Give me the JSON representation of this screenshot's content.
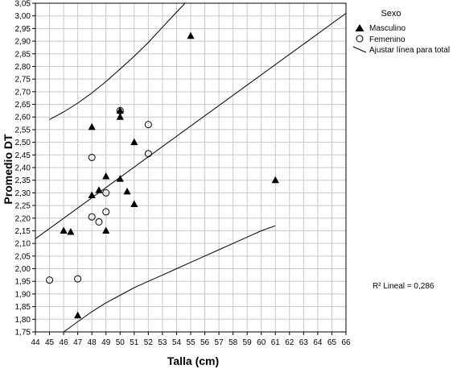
{
  "chart_data": {
    "type": "scatter",
    "title": "",
    "xlabel": "Talla (cm)",
    "ylabel": "Promedio DT",
    "xlim": [
      44,
      66
    ],
    "ylim": [
      1.75,
      3.05
    ],
    "x_ticks": [
      "44",
      "45",
      "46",
      "47",
      "48",
      "49",
      "50",
      "51",
      "52",
      "53",
      "54",
      "55",
      "56",
      "57",
      "58",
      "59",
      "60",
      "61",
      "62",
      "63",
      "64",
      "65",
      "66"
    ],
    "y_ticks": [
      "1,75",
      "1,80",
      "1,85",
      "1,90",
      "1,95",
      "2,00",
      "2,05",
      "2,10",
      "2,15",
      "2,20",
      "2,25",
      "2,30",
      "2,35",
      "2,40",
      "2,45",
      "2,50",
      "2,55",
      "2,60",
      "2,65",
      "2,70",
      "2,75",
      "2,80",
      "2,85",
      "2,90",
      "2,95",
      "3,00",
      "3,05"
    ],
    "grid": true,
    "legend": {
      "title": "Sexo",
      "placement": "top-right",
      "entries": [
        "Masculino",
        "Femenino",
        "Ajustar línea para total"
      ]
    },
    "annotation": "R² Lineal = 0,286",
    "series": [
      {
        "name": "Masculino",
        "marker": "triangle",
        "points": [
          [
            46.0,
            2.15
          ],
          [
            46.5,
            2.145
          ],
          [
            47.0,
            1.815
          ],
          [
            48.0,
            2.56
          ],
          [
            48.0,
            2.29
          ],
          [
            48.5,
            2.31
          ],
          [
            49.0,
            2.365
          ],
          [
            49.0,
            2.15
          ],
          [
            50.0,
            2.6
          ],
          [
            50.0,
            2.355
          ],
          [
            50.0,
            2.625
          ],
          [
            50.5,
            2.305
          ],
          [
            51.0,
            2.5
          ],
          [
            51.0,
            2.255
          ],
          [
            55.0,
            2.92
          ],
          [
            61.0,
            2.35
          ]
        ]
      },
      {
        "name": "Femenino",
        "marker": "circle",
        "points": [
          [
            45.0,
            1.955
          ],
          [
            47.0,
            1.96
          ],
          [
            48.0,
            2.44
          ],
          [
            48.0,
            2.205
          ],
          [
            48.5,
            2.185
          ],
          [
            49.0,
            2.3
          ],
          [
            49.0,
            2.225
          ],
          [
            50.0,
            2.625
          ],
          [
            52.0,
            2.57
          ],
          [
            52.0,
            2.455
          ]
        ]
      }
    ],
    "fit_line": {
      "x": [
        43.3,
        66
      ],
      "y": [
        2.09,
        3.01
      ]
    },
    "upper_band": [
      [
        45,
        2.59
      ],
      [
        46,
        2.62
      ],
      [
        47,
        2.655
      ],
      [
        48,
        2.695
      ],
      [
        49,
        2.74
      ],
      [
        50,
        2.79
      ],
      [
        51,
        2.84
      ],
      [
        52,
        2.895
      ],
      [
        53,
        2.955
      ],
      [
        54,
        3.015
      ],
      [
        54.6,
        3.05
      ]
    ],
    "lower_band": [
      [
        46,
        1.75
      ],
      [
        47,
        1.79
      ],
      [
        48,
        1.83
      ],
      [
        49,
        1.865
      ],
      [
        50,
        1.895
      ],
      [
        51,
        1.925
      ],
      [
        52,
        1.95
      ],
      [
        53,
        1.975
      ],
      [
        54,
        2.0
      ],
      [
        55,
        2.025
      ],
      [
        56,
        2.05
      ],
      [
        57,
        2.075
      ],
      [
        58,
        2.1
      ],
      [
        59,
        2.125
      ],
      [
        60,
        2.15
      ],
      [
        61,
        2.17
      ]
    ]
  }
}
